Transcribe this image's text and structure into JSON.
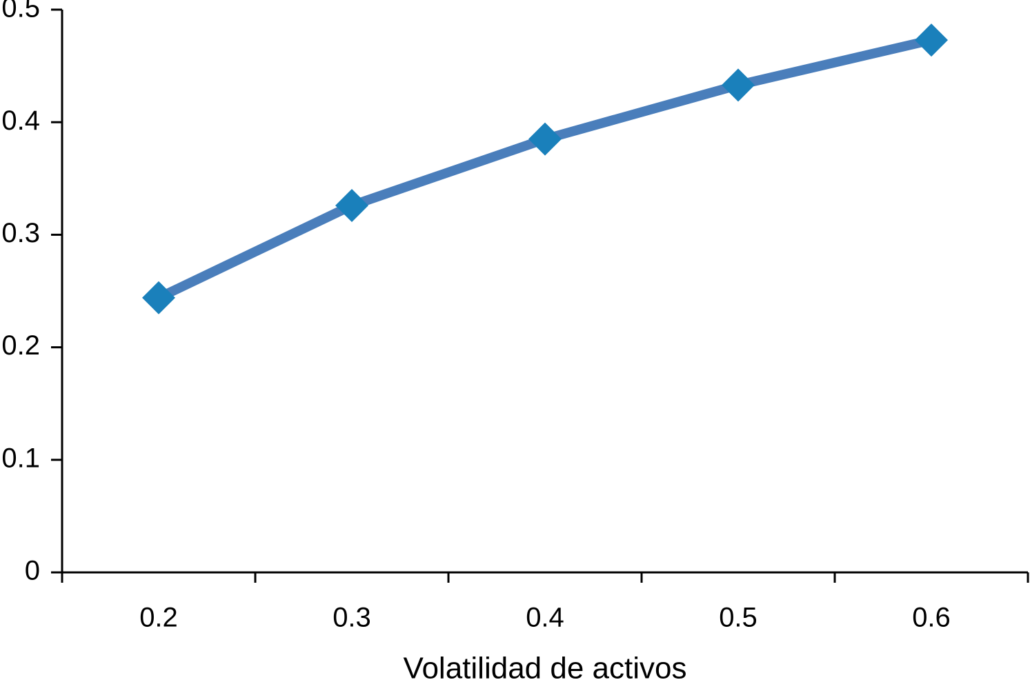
{
  "chart_data": {
    "type": "line",
    "x_label": "Volatilidad de activos",
    "categories": [
      "0.2",
      "0.3",
      "0.4",
      "0.5",
      "0.6"
    ],
    "series": [
      {
        "color": "#4a7ebb",
        "marker_color": "#1a80bb",
        "values": [
          0.244,
          0.326,
          0.385,
          0.433,
          0.473
        ]
      }
    ],
    "ylim": [
      0,
      0.5
    ],
    "yticks": [
      0,
      0.1,
      0.2,
      0.3,
      0.4,
      0.5
    ],
    "grid": false
  }
}
